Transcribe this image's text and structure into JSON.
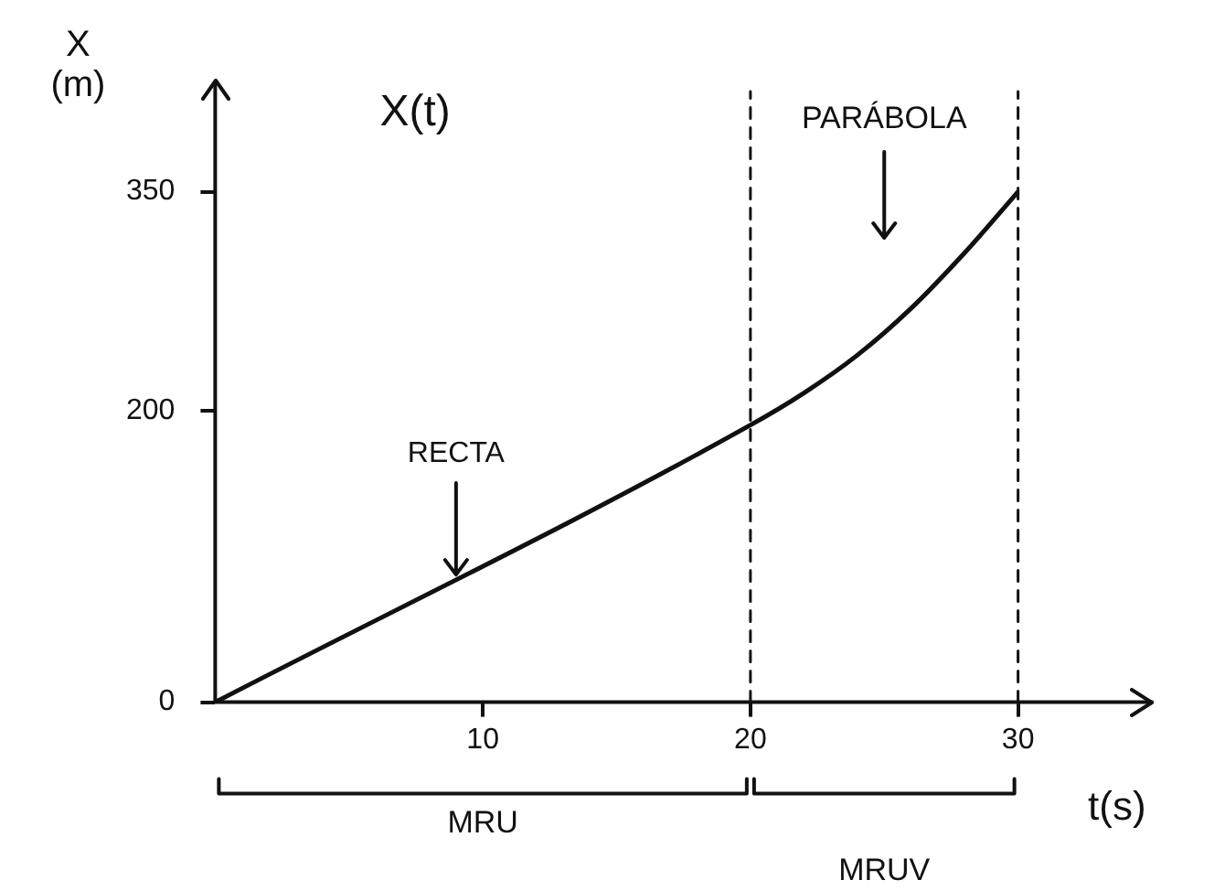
{
  "chart_data": {
    "type": "line",
    "title": "X(t)",
    "xlabel": "t(s)",
    "ylabel": "X (m)",
    "x": [
      0,
      20,
      22,
      24,
      26,
      28,
      30
    ],
    "series": [
      {
        "color": "#111111",
        "values": [
          0,
          190,
          212,
          238,
          270,
          308,
          350
        ]
      }
    ],
    "xlim": [
      0,
      35
    ],
    "xticks": [
      10,
      20,
      30
    ],
    "ylim": [
      0,
      425
    ],
    "yticks": [
      0,
      200,
      350
    ],
    "grid": false,
    "legend": false,
    "marker": "none",
    "line_style": "solid",
    "ref_lines": [
      {
        "axis": "x",
        "value": 20,
        "line_style": "dashed"
      },
      {
        "axis": "x",
        "value": 30,
        "line_style": "dashed"
      }
    ],
    "annotations": [
      {
        "text": "RECTA",
        "x": 9,
        "y": 85
      },
      "PARÁBOLA",
      "MRU",
      "MRUV"
    ]
  }
}
